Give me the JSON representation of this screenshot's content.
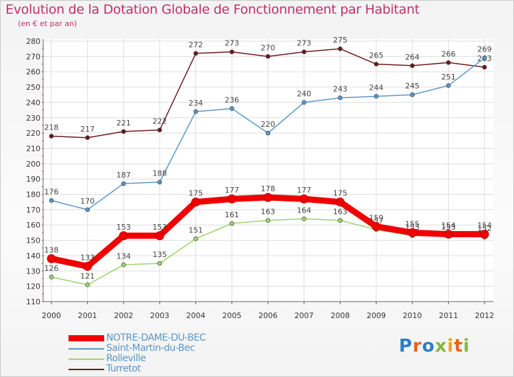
{
  "chart_data": {
    "type": "line",
    "title": "Evolution de la Dotation Globale de Fonctionnement par Habitant",
    "subtitle": "(en € et par an)",
    "xlabel": "",
    "ylabel": "",
    "categories": [
      "2000",
      "2001",
      "2002",
      "2003",
      "2004",
      "2005",
      "2006",
      "2007",
      "2008",
      "2009",
      "2010",
      "2011",
      "2012"
    ],
    "ylim": [
      110,
      280
    ],
    "yticks": [
      110,
      120,
      130,
      140,
      150,
      160,
      170,
      180,
      190,
      200,
      210,
      220,
      230,
      240,
      250,
      260,
      270,
      280
    ],
    "grid": true,
    "series": [
      {
        "name": "Turretot",
        "color": "#6b1a1f",
        "values": [
          218,
          217,
          221,
          222,
          272,
          273,
          270,
          273,
          275,
          265,
          264,
          266,
          263
        ]
      },
      {
        "name": "Saint-Martin-du-Bec",
        "color": "#5b97c9",
        "values": [
          176,
          170,
          187,
          188,
          234,
          236,
          220,
          240,
          243,
          244,
          245,
          251,
          269
        ]
      },
      {
        "name": "Rolleville",
        "color": "#9bd46a",
        "values": [
          126,
          121,
          134,
          135,
          151,
          161,
          163,
          164,
          163,
          157,
          153,
          153,
          152
        ]
      },
      {
        "name": "NOTRE-DAME-DU-BEC",
        "color": "#f00000",
        "highlight": true,
        "values": [
          138,
          133,
          153,
          153,
          175,
          177,
          178,
          177,
          175,
          159,
          155,
          154,
          154
        ]
      }
    ]
  },
  "legend": [
    {
      "label": "NOTRE-DAME-DU-BEC",
      "color": "#f00000"
    },
    {
      "label": "Saint-Martin-du-Bec",
      "color": "#5b97c9"
    },
    {
      "label": "Rolleville",
      "color": "#9bd46a"
    },
    {
      "label": "Turretot",
      "color": "#6b1a1f"
    }
  ],
  "logo": {
    "text": "Proxiti"
  }
}
